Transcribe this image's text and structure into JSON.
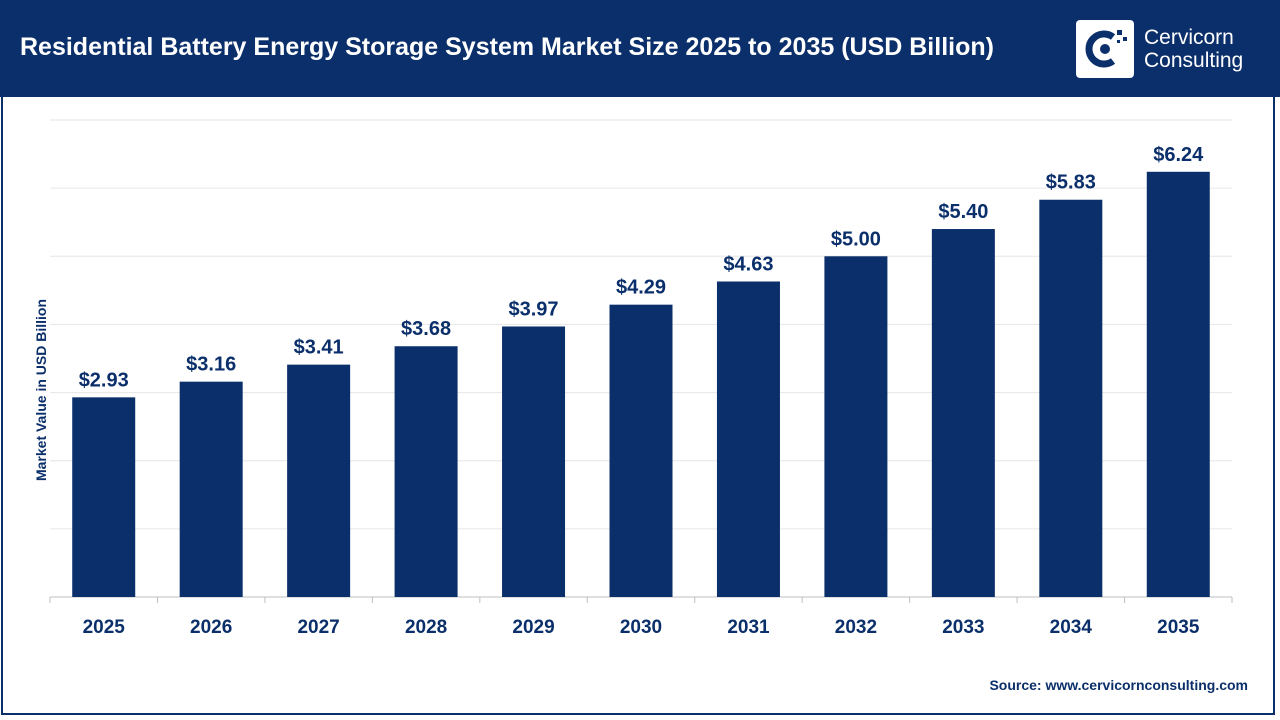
{
  "header": {
    "title": "Residential Battery Energy Storage System Market Size 2025 to 2035 (USD Billion)",
    "logo_line1": "Cervicorn",
    "logo_line2": "Consulting"
  },
  "footer": {
    "source": "Source: www.cervicornconsulting.com"
  },
  "colors": {
    "brand": "#0b2f6a",
    "bar": "#0b2f6a",
    "grid": "#e6e6e6"
  },
  "chart_data": {
    "type": "bar",
    "title": "Residential Battery Energy Storage System Market Size 2025 to 2035 (USD Billion)",
    "xlabel": "",
    "ylabel": "Market Value in USD Billion",
    "categories": [
      "2025",
      "2026",
      "2027",
      "2028",
      "2029",
      "2030",
      "2031",
      "2032",
      "2033",
      "2034",
      "2035"
    ],
    "values": [
      2.93,
      3.16,
      3.41,
      3.68,
      3.97,
      4.29,
      4.63,
      5.0,
      5.4,
      5.83,
      6.24
    ],
    "data_labels": [
      "$2.93",
      "$3.16",
      "$3.41",
      "$3.68",
      "$3.97",
      "$4.29",
      "$4.63",
      "$5.00",
      "$5.40",
      "$5.83",
      "$6.24"
    ],
    "ylim": [
      0,
      7
    ],
    "grid": true,
    "legend": "none"
  }
}
